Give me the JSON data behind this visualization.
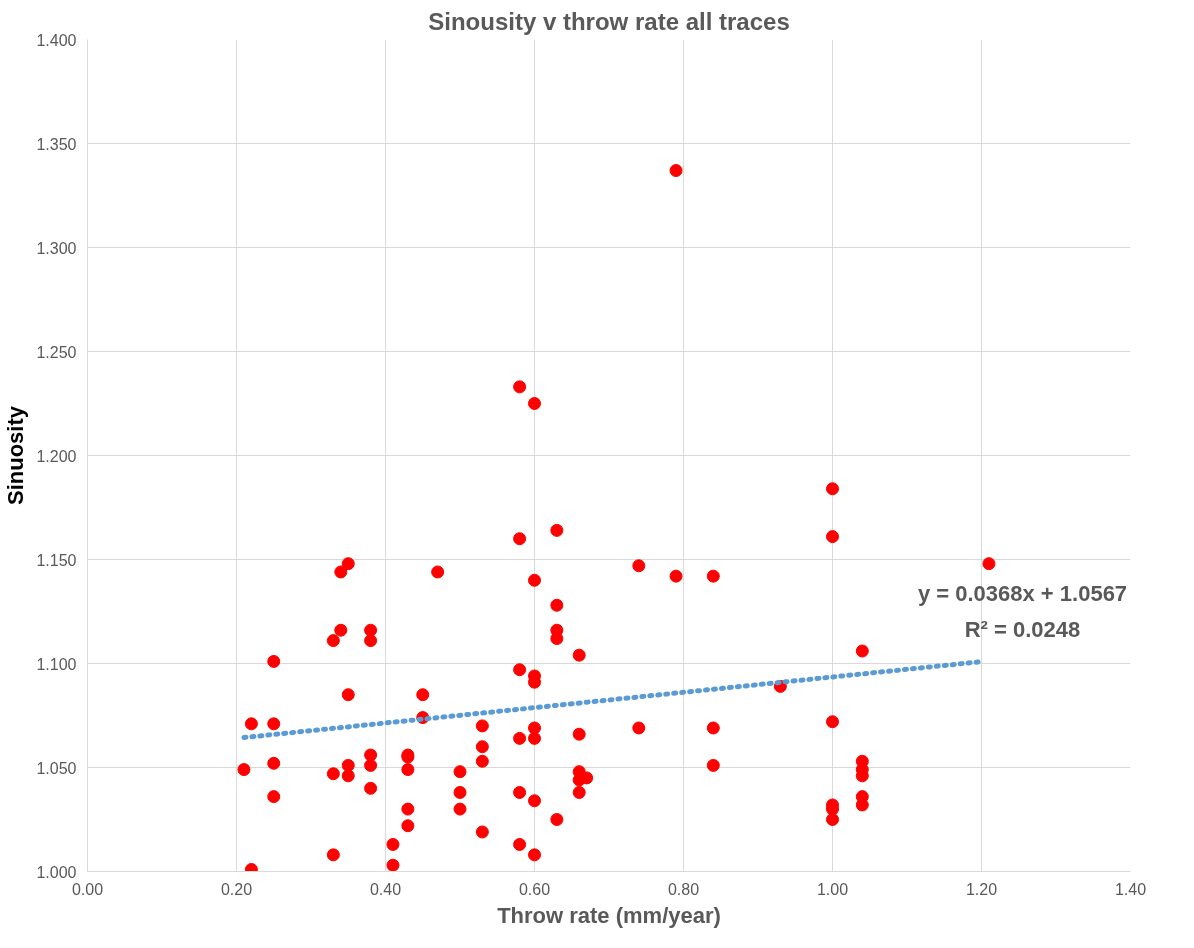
{
  "chart_data": {
    "type": "scatter",
    "title": "Sinousity v throw rate all traces",
    "xlabel": "Throw rate (mm/year)",
    "ylabel": "Sinuosity",
    "xlim": [
      0,
      1.4
    ],
    "xticks": [
      {
        "value": 0,
        "label": "0.00"
      },
      {
        "value": 0.2,
        "label": "0.20"
      },
      {
        "value": 0.4,
        "label": "0.40"
      },
      {
        "value": 0.6,
        "label": "0.60"
      },
      {
        "value": 0.8,
        "label": "0.80"
      },
      {
        "value": 1.0,
        "label": "1.00"
      },
      {
        "value": 1.2,
        "label": "1.20"
      },
      {
        "value": 1.4,
        "label": "1.40"
      }
    ],
    "ylim": [
      1.0,
      1.4
    ],
    "yticks": [
      {
        "value": 1.0,
        "label": "1.000"
      },
      {
        "value": 1.05,
        "label": "1.050"
      },
      {
        "value": 1.1,
        "label": "1.100"
      },
      {
        "value": 1.15,
        "label": "1.150"
      },
      {
        "value": 1.2,
        "label": "1.200"
      },
      {
        "value": 1.25,
        "label": "1.250"
      },
      {
        "value": 1.3,
        "label": "1.300"
      },
      {
        "value": 1.35,
        "label": "1.350"
      },
      {
        "value": 1.4,
        "label": "1.400"
      }
    ],
    "grid": true,
    "series": [
      {
        "marker": "circle",
        "color": "#ff0000",
        "x": [
          0.21,
          0.22,
          0.22,
          0.25,
          0.25,
          0.25,
          0.25,
          0.33,
          0.33,
          0.33,
          0.34,
          0.34,
          0.35,
          0.35,
          0.35,
          0.35,
          0.38,
          0.38,
          0.38,
          0.38,
          0.38,
          0.41,
          0.41,
          0.43,
          0.43,
          0.43,
          0.43,
          0.43,
          0.45,
          0.45,
          0.47,
          0.5,
          0.5,
          0.5,
          0.53,
          0.53,
          0.53,
          0.53,
          0.58,
          0.58,
          0.58,
          0.58,
          0.58,
          0.58,
          0.6,
          0.6,
          0.6,
          0.6,
          0.6,
          0.6,
          0.6,
          0.6,
          0.63,
          0.63,
          0.63,
          0.63,
          0.63,
          0.66,
          0.66,
          0.66,
          0.66,
          0.66,
          0.67,
          0.74,
          0.74,
          0.79,
          0.79,
          0.84,
          0.84,
          0.84,
          0.93,
          1.0,
          1.0,
          1.0,
          1.0,
          1.0,
          1.0,
          1.04,
          1.04,
          1.04,
          1.04,
          1.04,
          1.04,
          1.21
        ],
        "values": [
          1.049,
          1.071,
          1.001,
          1.101,
          1.071,
          1.052,
          1.036,
          1.008,
          1.111,
          1.047,
          1.116,
          1.144,
          1.148,
          1.085,
          1.051,
          1.046,
          1.116,
          1.111,
          1.056,
          1.051,
          1.04,
          1.013,
          1.003,
          1.056,
          1.049,
          1.03,
          1.022,
          1.055,
          1.085,
          1.074,
          1.144,
          1.048,
          1.038,
          1.03,
          1.07,
          1.06,
          1.053,
          1.019,
          1.233,
          1.16,
          1.097,
          1.064,
          1.038,
          1.013,
          1.225,
          1.14,
          1.094,
          1.091,
          1.069,
          1.064,
          1.034,
          1.008,
          1.164,
          1.128,
          1.116,
          1.112,
          1.025,
          1.104,
          1.066,
          1.048,
          1.044,
          1.038,
          1.045,
          1.147,
          1.069,
          1.337,
          1.142,
          1.142,
          1.069,
          1.051,
          1.089,
          1.184,
          1.161,
          1.072,
          1.032,
          1.03,
          1.025,
          1.106,
          1.053,
          1.049,
          1.046,
          1.036,
          1.032,
          1.148
        ]
      },
      {
        "type": "line",
        "color": "#5b9bd5",
        "line_style": "dotted",
        "x": [
          0.21,
          1.2
        ],
        "values": [
          1.0644,
          1.1009
        ]
      }
    ],
    "annotations": [
      "y = 0.0368x + 1.0567",
      "R² = 0.0248"
    ]
  }
}
